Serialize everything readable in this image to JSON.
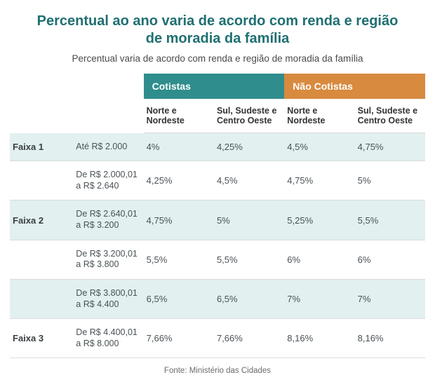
{
  "title": {
    "text": "Percentual ao ano varia de acordo com renda e região de moradia da família",
    "color": "#1f6f72",
    "fontsize": 20
  },
  "subtitle": {
    "text": "Percentual varia de acordo com renda e região de moradia da família",
    "color": "#4a4a4a",
    "fontsize": 13.5
  },
  "table": {
    "groups": [
      {
        "label": "Cotistas",
        "bg": "#2f8e8d"
      },
      {
        "label": "Não Cotistas",
        "bg": "#d88a3f"
      }
    ],
    "subcolumns": [
      "Norte e Nordeste",
      "Sul, Sudeste e Centro Oeste",
      "Norte e Nordeste",
      "Sul, Sudeste e Centro Oeste"
    ],
    "rows": [
      {
        "faixa": "Faixa 1",
        "range": "Até R$ 2.000",
        "values": [
          "4%",
          "4,25%",
          "4,5%",
          "4,75%"
        ]
      },
      {
        "faixa": "",
        "range": "De R$ 2.000,01 a R$ 2.640",
        "values": [
          "4,25%",
          "4,5%",
          "4,75%",
          "5%"
        ]
      },
      {
        "faixa": "Faixa 2",
        "range": "De R$ 2.640,01 a R$ 3.200",
        "values": [
          "4,75%",
          "5%",
          "5,25%",
          "5,5%"
        ]
      },
      {
        "faixa": "",
        "range": "De R$ 3.200,01 a R$ 3.800",
        "values": [
          "5,5%",
          "5,5%",
          "6%",
          "6%"
        ]
      },
      {
        "faixa": "",
        "range": "De R$ 3.800,01 a R$ 4.400",
        "values": [
          "6,5%",
          "6,5%",
          "7%",
          "7%"
        ]
      },
      {
        "faixa": "Faixa 3",
        "range": "De R$ 4.400,01 a R$ 8.000",
        "values": [
          "7,66%",
          "7,66%",
          "8,16%",
          "8,16%"
        ]
      }
    ],
    "row_stripe_even": "#e2f0ef",
    "row_stripe_odd": "#ffffff",
    "cell_text_color": "#4a5256",
    "faixa_text_color": "#3a3f42"
  },
  "footer": {
    "text": "Fonte: Ministério das Cidades",
    "color": "#6b6b6b",
    "fontsize": 11.5
  }
}
